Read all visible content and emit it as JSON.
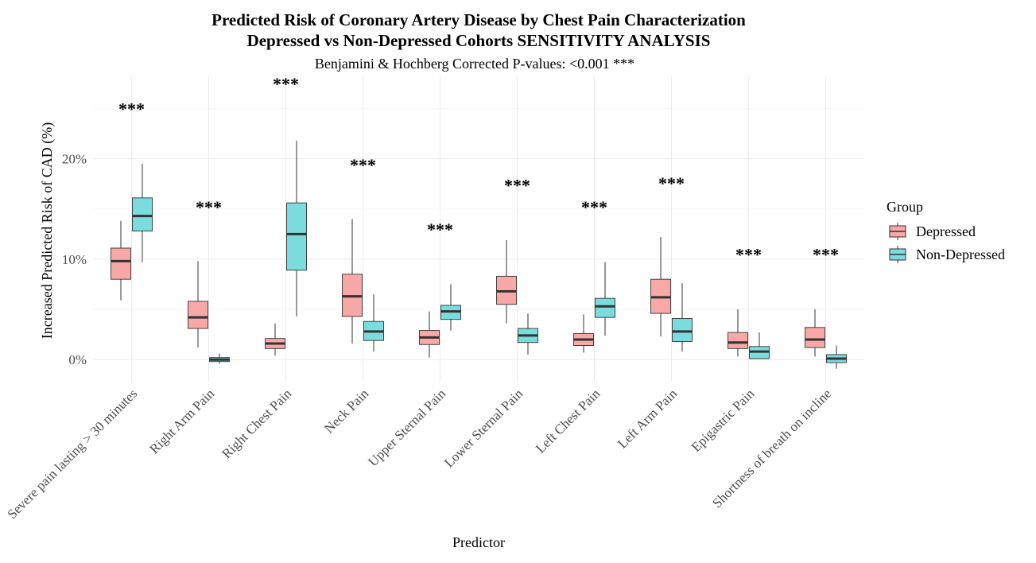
{
  "chart_data": {
    "type": "box",
    "title_lines": [
      "Predicted Risk of Coronary Artery Disease by Chest Pain Characterization",
      "Depressed vs Non-Depressed Cohorts SENSITIVITY ANALYSIS"
    ],
    "subtitle": "Benjamini & Hochberg Corrected P-values: <0.001 ***",
    "xlabel": "Predictor",
    "ylabel": "Increased Predicted Risk of CAD (%)",
    "ylim": [
      -2.2,
      28.2
    ],
    "yticks": [
      0,
      10,
      20
    ],
    "ytick_labels": [
      "0%",
      "10%",
      "20%"
    ],
    "grid": true,
    "legend": {
      "title": "Group",
      "position": "right",
      "entries": [
        {
          "label": "Depressed",
          "color": "#F8A8A6"
        },
        {
          "label": "Non-Depressed",
          "color": "#7BDCDE"
        }
      ]
    },
    "categories": [
      "Severe pain lasting > 30 minutes",
      "Right Arm Pain",
      "Right Chest Pain",
      "Neck Pain",
      "Upper Sternal Pain",
      "Lower Sternal Pain",
      "Left Chest Pain",
      "Left Arm Pain",
      "Epigastric Pain",
      "Shortness of breath on incline"
    ],
    "significance": [
      {
        "label": "***",
        "y": 25.0
      },
      {
        "label": "***",
        "y": 15.2
      },
      {
        "label": "***",
        "y": 27.5
      },
      {
        "label": "***",
        "y": 19.4
      },
      {
        "label": "***",
        "y": 13.0
      },
      {
        "label": "***",
        "y": 17.4
      },
      {
        "label": "***",
        "y": 15.2
      },
      {
        "label": "***",
        "y": 17.6
      },
      {
        "label": "***",
        "y": 10.5
      },
      {
        "label": "***",
        "y": 10.5
      }
    ],
    "series": [
      {
        "name": "Depressed",
        "boxes": [
          {
            "whisker_low": 5.9,
            "q1": 8.0,
            "median": 9.8,
            "q3": 11.1,
            "whisker_high": 13.8
          },
          {
            "whisker_low": 1.2,
            "q1": 3.1,
            "median": 4.2,
            "q3": 5.8,
            "whisker_high": 9.8
          },
          {
            "whisker_low": 0.4,
            "q1": 1.1,
            "median": 1.6,
            "q3": 2.1,
            "whisker_high": 3.6
          },
          {
            "whisker_low": 1.6,
            "q1": 4.3,
            "median": 6.3,
            "q3": 8.5,
            "whisker_high": 14.0
          },
          {
            "whisker_low": 0.2,
            "q1": 1.5,
            "median": 2.2,
            "q3": 2.9,
            "whisker_high": 4.8
          },
          {
            "whisker_low": 3.6,
            "q1": 5.5,
            "median": 6.8,
            "q3": 8.3,
            "whisker_high": 11.9
          },
          {
            "whisker_low": 0.7,
            "q1": 1.4,
            "median": 2.0,
            "q3": 2.6,
            "whisker_high": 4.5
          },
          {
            "whisker_low": 2.3,
            "q1": 4.6,
            "median": 6.2,
            "q3": 8.0,
            "whisker_high": 12.2
          },
          {
            "whisker_low": 0.3,
            "q1": 1.1,
            "median": 1.7,
            "q3": 2.7,
            "whisker_high": 5.0
          },
          {
            "whisker_low": 0.3,
            "q1": 1.2,
            "median": 2.0,
            "q3": 3.2,
            "whisker_high": 5.0
          }
        ]
      },
      {
        "name": "Non-Depressed",
        "boxes": [
          {
            "whisker_low": 9.7,
            "q1": 12.8,
            "median": 14.3,
            "q3": 16.1,
            "whisker_high": 19.5
          },
          {
            "whisker_low": -0.4,
            "q1": -0.2,
            "median": 0.0,
            "q3": 0.2,
            "whisker_high": 0.6
          },
          {
            "whisker_low": 4.3,
            "q1": 8.9,
            "median": 12.5,
            "q3": 15.6,
            "whisker_high": 21.8
          },
          {
            "whisker_low": 0.8,
            "q1": 1.9,
            "median": 2.8,
            "q3": 3.8,
            "whisker_high": 6.5
          },
          {
            "whisker_low": 2.9,
            "q1": 4.0,
            "median": 4.8,
            "q3": 5.4,
            "whisker_high": 7.5
          },
          {
            "whisker_low": 0.5,
            "q1": 1.7,
            "median": 2.4,
            "q3": 3.1,
            "whisker_high": 4.6
          },
          {
            "whisker_low": 2.4,
            "q1": 4.2,
            "median": 5.3,
            "q3": 6.1,
            "whisker_high": 9.7
          },
          {
            "whisker_low": 0.8,
            "q1": 1.8,
            "median": 2.8,
            "q3": 4.1,
            "whisker_high": 7.6
          },
          {
            "whisker_low": 0.1,
            "q1": 0.1,
            "median": 0.8,
            "q3": 1.3,
            "whisker_high": 2.7
          },
          {
            "whisker_low": -0.9,
            "q1": -0.3,
            "median": 0.1,
            "q3": 0.5,
            "whisker_high": 1.4
          }
        ]
      }
    ]
  }
}
